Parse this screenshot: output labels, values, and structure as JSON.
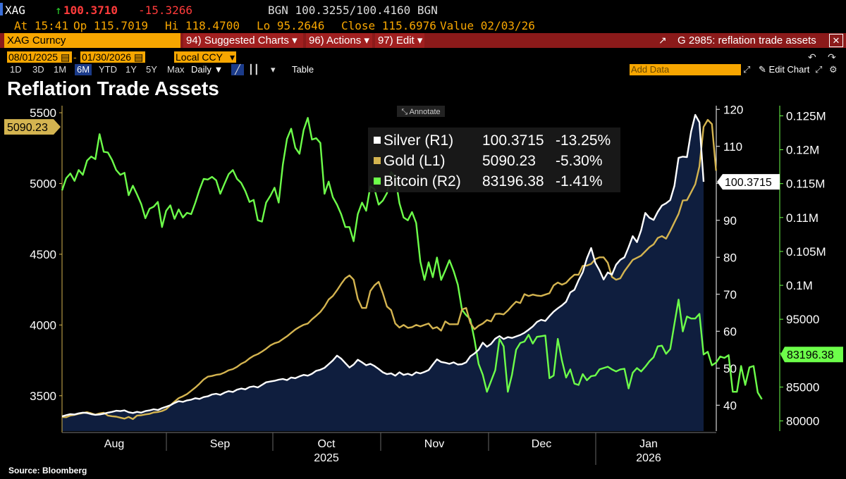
{
  "colors": {
    "amber": "#f7a600",
    "command_red": "#8b1a1a",
    "up_green": "#2bd02b",
    "down_red": "#ff3b3b",
    "silver": "#ffffff",
    "gold": "#d4b450",
    "bitcoin": "#6dff4a",
    "area_fill": "#0f1e3e"
  },
  "ticker": {
    "symbol": "XAG",
    "last": "100.3710",
    "arrow": "↑",
    "change": "-15.3266",
    "bid_ask": "BGN 100.3255/100.4160 BGN"
  },
  "ohlc": {
    "at": "At 15:41",
    "open": "Op 115.7019",
    "high": "Hi 118.4700",
    "low": "Lo 95.2646",
    "close": "Close 115.6976",
    "value": "Value 02/03/26"
  },
  "command_bar": {
    "security": "XAG Curncy",
    "suggested": "94) Suggested Charts ▾",
    "actions": "96) Actions ▾",
    "edit": "97) Edit ▾",
    "graph": "G 2985: reflation trade assets"
  },
  "date_range": {
    "start": "08/01/2025",
    "end": "01/30/2026",
    "currency": "Local CCY"
  },
  "periods": [
    "1D",
    "3D",
    "1M",
    "6M",
    "YTD",
    "1Y",
    "5Y",
    "Max"
  ],
  "selected_period": "6M",
  "frequency": "Daily ▼",
  "table_label": "Table",
  "add_data_placeholder": "Add Data",
  "edit_chart_label": "Edit Chart",
  "annotate_label": "Annotate",
  "source": "Source: Bloomberg",
  "chart_data": {
    "type": "line",
    "title": "Reflation Trade Assets",
    "x_labels": [
      "Aug",
      "Sep",
      "Oct",
      "Nov",
      "Dec",
      "Jan"
    ],
    "year_labels": [
      "2025",
      "2026"
    ],
    "left_axis": {
      "ticks": [
        "3500",
        "4000",
        "4500",
        "5000",
        "5500"
      ],
      "range": [
        3250,
        5550
      ]
    },
    "right1_axis": {
      "ticks": [
        "40",
        "50",
        "60",
        "70",
        "80",
        "90",
        "100",
        "110",
        "120"
      ],
      "range": [
        33,
        121
      ]
    },
    "right2_axis": {
      "ticks": [
        "80000",
        "85000",
        "90000",
        "95000",
        "0.1M",
        "0.105M",
        "0.11M",
        "0.115M",
        "0.12M",
        "0.125M"
      ],
      "values": [
        80000,
        85000,
        90000,
        95000,
        100000,
        105000,
        110000,
        115000,
        120000,
        125000
      ],
      "range": [
        78500,
        126500
      ]
    },
    "legend": {
      "position": "top-center",
      "entries": [
        {
          "label": "Silver (R1)",
          "value": "100.3715",
          "change": "-13.25%"
        },
        {
          "label": "Gold (L1)",
          "value": "5090.23",
          "change": "-5.30%"
        },
        {
          "label": "Bitcoin (R2)",
          "value": "83196.38",
          "change": "-1.41%"
        }
      ]
    },
    "last_value_tags": {
      "gold": "5090.23",
      "silver": "100.3715",
      "bitcoin": "83196.38"
    },
    "series": [
      {
        "name": "Silver (R1)",
        "axis": "right1",
        "values": [
          37.0,
          37.3,
          37.6,
          37.5,
          37.8,
          38.0,
          37.9,
          37.6,
          37.4,
          37.5,
          37.7,
          38.0,
          38.2,
          38.5,
          38.4,
          38.6,
          38.1,
          37.9,
          38.2,
          38.0,
          38.4,
          38.6,
          38.9,
          38.7,
          39.2,
          39.6,
          40.0,
          40.6,
          41.1,
          40.9,
          41.3,
          41.5,
          41.9,
          41.7,
          42.2,
          42.4,
          42.9,
          43.1,
          42.8,
          43.4,
          43.8,
          43.6,
          44.2,
          44.5,
          44.3,
          44.9,
          45.1,
          44.8,
          45.5,
          46.2,
          46.4,
          46.6,
          46.9,
          47.1,
          46.8,
          47.5,
          47.3,
          47.8,
          48.2,
          48.0,
          48.5,
          49.3,
          49.6,
          50.1,
          51.1,
          52.1,
          53.4,
          52.6,
          51.4,
          50.2,
          51.0,
          52.3,
          51.6,
          50.8,
          51.2,
          50.6,
          49.8,
          48.9,
          48.4,
          48.6,
          48.0,
          48.9,
          48.2,
          48.5,
          48.1,
          48.9,
          48.6,
          49.0,
          49.5,
          51.0,
          52.4,
          51.7,
          51.5,
          51.2,
          51.6,
          51.0,
          51.1,
          51.6,
          53.2,
          54.0,
          55.0,
          56.9,
          55.8,
          56.6,
          58.0,
          58.7,
          57.9,
          58.4,
          58.2,
          58.6,
          59.0,
          59.6,
          60.4,
          61.3,
          62.5,
          63.1,
          62.8,
          64.1,
          65.3,
          66.2,
          67.0,
          68.0,
          70.5,
          71.2,
          73.8,
          76.0,
          79.7,
          82.5,
          78.5,
          76.5,
          74.0,
          75.9,
          75.3,
          78.0,
          79.3,
          80.0,
          82.7,
          85.7,
          84.1,
          87.3,
          92.0,
          90.7,
          90.1,
          92.3,
          94.0,
          94.6,
          95.5,
          99.3,
          106.9,
          107.2,
          107.1,
          114.0,
          118.5,
          116.5,
          100.4
        ]
      },
      {
        "name": "Gold (L1)",
        "axis": "left",
        "values": [
          3350,
          3348,
          3360,
          3365,
          3372,
          3378,
          3384,
          3376,
          3366,
          3375,
          3380,
          3360,
          3355,
          3352,
          3345,
          3338,
          3350,
          3335,
          3360,
          3362,
          3368,
          3372,
          3382,
          3385,
          3392,
          3405,
          3432,
          3458,
          3483,
          3496,
          3512,
          3535,
          3558,
          3585,
          3615,
          3635,
          3640,
          3648,
          3652,
          3664,
          3680,
          3688,
          3704,
          3726,
          3740,
          3764,
          3782,
          3794,
          3812,
          3832,
          3856,
          3871,
          3880,
          3900,
          3920,
          3944,
          3968,
          3986,
          4001,
          4010,
          4040,
          4065,
          4092,
          4130,
          4180,
          4205,
          4245,
          4290,
          4330,
          4350,
          4320,
          4185,
          4120,
          4120,
          4240,
          4280,
          4305,
          4225,
          4130,
          4105,
          4010,
          3982,
          4000,
          3980,
          3985,
          4000,
          3990,
          4000,
          4010,
          3975,
          3985,
          3960,
          4025,
          4005,
          4005,
          4005,
          4110,
          4120,
          4015,
          3970,
          3995,
          4010,
          4035,
          4025,
          4078,
          4080,
          4075,
          4102,
          4135,
          4165,
          4155,
          4218,
          4205,
          4215,
          4208,
          4205,
          4215,
          4225,
          4280,
          4300,
          4285,
          4298,
          4330,
          4355,
          4355,
          4418,
          4420,
          4432,
          4465,
          4478,
          4478,
          4440,
          4340,
          4320,
          4330,
          4380,
          4420,
          4460,
          4475,
          4490,
          4520,
          4550,
          4570,
          4615,
          4628,
          4610,
          4665,
          4725,
          4785,
          4880,
          4882,
          4938,
          4995,
          5120,
          5400,
          5450,
          5420,
          5090
        ]
      },
      {
        "name": "Bitcoin (R2)",
        "axis": "right2",
        "values": [
          114000,
          115800,
          116500,
          115400,
          117000,
          116300,
          118400,
          119000,
          118600,
          122300,
          119700,
          119600,
          118500,
          117000,
          116300,
          116600,
          113300,
          114700,
          113400,
          112000,
          109900,
          111300,
          111600,
          112300,
          108600,
          111000,
          111800,
          109800,
          111200,
          110000,
          110700,
          110500,
          112200,
          114100,
          115700,
          115600,
          116000,
          115500,
          113500,
          115000,
          116400,
          117000,
          115700,
          115100,
          113900,
          112300,
          112600,
          109600,
          109400,
          112200,
          113200,
          114400,
          112200,
          117800,
          121600,
          123100,
          120300,
          119400,
          122900,
          124700,
          121500,
          121700,
          121000,
          113500,
          115300,
          113000,
          111900,
          110500,
          108600,
          108600,
          106500,
          110500,
          112200,
          111000,
          114600,
          114200,
          111900,
          112500,
          113600,
          116700,
          115900,
          112100,
          110000,
          109600,
          110800,
          109200,
          103500,
          100800,
          103400,
          101200,
          104100,
          100800,
          102200,
          103700,
          102100,
          100100,
          96400,
          95600,
          95000,
          92000,
          88400,
          86800,
          84300,
          85900,
          87500,
          92100,
          91000,
          84300,
          86800,
          90500,
          91500,
          91700,
          92700,
          91400,
          92400,
          92500,
          92600,
          86300,
          86700,
          92100,
          88900,
          86400,
          87600,
          85500,
          85300,
          86900,
          86000,
          86600,
          86700,
          87600,
          87800,
          88000,
          87600,
          87300,
          87600,
          87700,
          84800,
          87100,
          87800,
          87300,
          88000,
          88800,
          89400,
          91000,
          91100,
          89900,
          90600,
          94300,
          97900,
          93200,
          95400,
          95100,
          95100,
          95800,
          89800,
          90200,
          88200,
          88600,
          89500,
          89300,
          89700,
          84300,
          84300,
          88100,
          85300,
          87900,
          88100,
          84200,
          83196
        ]
      }
    ]
  }
}
